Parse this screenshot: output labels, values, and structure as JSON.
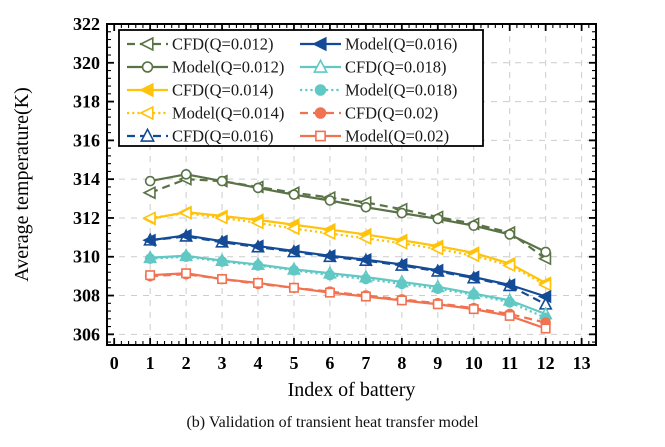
{
  "figure": {
    "caption": "(b) Validation of transient heat transfer model"
  },
  "chart_data": {
    "type": "line",
    "title": "",
    "xlabel": "Index of battery",
    "ylabel": "Average temperature(K)",
    "xlim": [
      -0.2,
      13.4
    ],
    "ylim": [
      305.45,
      322.0
    ],
    "xticks": [
      0,
      1,
      2,
      3,
      4,
      5,
      6,
      7,
      8,
      9,
      10,
      11,
      12,
      13
    ],
    "yticks": [
      306,
      308,
      310,
      312,
      314,
      316,
      318,
      320,
      322
    ],
    "grid": true,
    "legend": {
      "position": "upper-left",
      "columns": 2,
      "rows": 5,
      "border": true
    },
    "x": [
      1,
      2,
      3,
      4,
      5,
      6,
      7,
      8,
      9,
      10,
      11,
      12
    ],
    "series": [
      {
        "name": "CFD(Q=0.012)",
        "color": "#5A7346",
        "linestyle": "dashed",
        "marker": "triangle-left",
        "marker_filled": false,
        "values": [
          313.3,
          314.0,
          313.9,
          313.6,
          313.3,
          313.05,
          312.8,
          312.45,
          312.05,
          311.7,
          311.25,
          309.9
        ]
      },
      {
        "name": "Model(Q=0.012)",
        "color": "#5A7346",
        "linestyle": "solid",
        "marker": "circle",
        "marker_filled": false,
        "values": [
          313.9,
          314.25,
          313.9,
          313.55,
          313.2,
          312.9,
          312.55,
          312.25,
          311.95,
          311.6,
          311.15,
          310.25
        ]
      },
      {
        "name": "CFD(Q=0.014)",
        "color": "#FFC30B",
        "linestyle": "solid",
        "marker": "triangle-left",
        "marker_filled": true,
        "values": [
          311.95,
          312.3,
          312.1,
          311.9,
          311.65,
          311.4,
          311.15,
          310.85,
          310.55,
          310.2,
          309.65,
          308.65
        ]
      },
      {
        "name": "Model(Q=0.014)",
        "color": "#FFC30B",
        "linestyle": "dotted",
        "marker": "triangle-left",
        "marker_filled": false,
        "values": [
          312.0,
          312.25,
          312.0,
          311.75,
          311.45,
          311.2,
          310.95,
          310.7,
          310.4,
          310.05,
          309.55,
          308.55
        ]
      },
      {
        "name": "CFD(Q=0.016)",
        "color": "#144B96",
        "linestyle": "dashed",
        "marker": "triangle-up",
        "marker_filled": false,
        "values": [
          310.85,
          311.05,
          310.75,
          310.5,
          310.25,
          310.0,
          309.8,
          309.55,
          309.25,
          308.9,
          308.5,
          307.55
        ]
      },
      {
        "name": "Model(Q=0.016)",
        "color": "#144B96",
        "linestyle": "solid",
        "marker": "triangle-left",
        "marker_filled": true,
        "values": [
          310.85,
          311.1,
          310.8,
          310.55,
          310.3,
          310.05,
          309.85,
          309.6,
          309.3,
          308.95,
          308.55,
          307.95
        ]
      },
      {
        "name": "CFD(Q=0.018)",
        "color": "#61C8C4",
        "linestyle": "solid",
        "marker": "triangle-up",
        "marker_filled": false,
        "values": [
          309.95,
          310.05,
          309.8,
          309.6,
          309.35,
          309.15,
          308.95,
          308.7,
          308.45,
          308.1,
          307.75,
          307.05
        ]
      },
      {
        "name": "Model(Q=0.018)",
        "color": "#61C8C4",
        "linestyle": "dotted",
        "marker": "circle",
        "marker_filled": true,
        "values": [
          309.9,
          310.0,
          309.75,
          309.55,
          309.3,
          309.05,
          308.85,
          308.6,
          308.35,
          308.05,
          307.65,
          306.85
        ]
      },
      {
        "name": "CFD(Q=0.02)",
        "color": "#F07250",
        "linestyle": "dashed",
        "marker": "circle",
        "marker_filled": true,
        "values": [
          309.0,
          309.1,
          308.85,
          308.6,
          308.4,
          308.2,
          308.0,
          307.8,
          307.6,
          307.35,
          307.05,
          306.6
        ]
      },
      {
        "name": "Model(Q=0.02)",
        "color": "#F07250",
        "linestyle": "solid",
        "marker": "square",
        "marker_filled": false,
        "values": [
          309.05,
          309.15,
          308.85,
          308.65,
          308.4,
          308.15,
          307.95,
          307.75,
          307.55,
          307.3,
          306.95,
          306.3
        ]
      }
    ]
  }
}
